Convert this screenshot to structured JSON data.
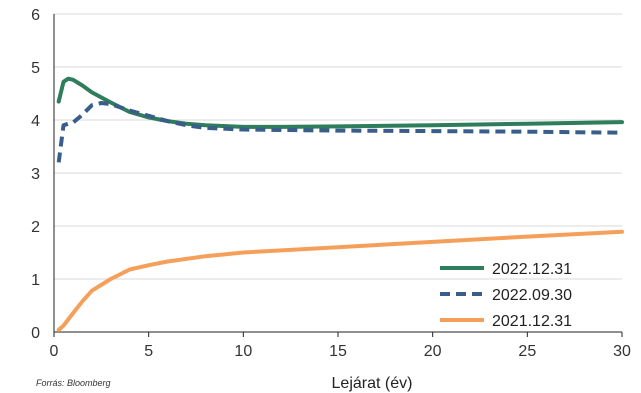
{
  "chart_data": {
    "type": "line",
    "title": "",
    "xlabel": "Lejárat (év)",
    "ylabel": "",
    "xlim": [
      0,
      30
    ],
    "ylim": [
      0,
      6
    ],
    "x_ticks": [
      0,
      5,
      10,
      15,
      20,
      25,
      30
    ],
    "y_ticks": [
      0,
      1,
      2,
      3,
      4,
      5,
      6
    ],
    "grid": "horizontal",
    "legend_position": "bottom-right",
    "source": "Forrás: Bloomberg",
    "series": [
      {
        "name": "2022.12.31",
        "color": "#2e7d5b",
        "dash": "solid",
        "x": [
          0.25,
          0.5,
          0.75,
          1,
          1.5,
          2,
          3,
          4,
          5,
          6,
          7,
          8,
          10,
          12,
          15,
          20,
          25,
          30
        ],
        "y": [
          4.35,
          4.72,
          4.78,
          4.76,
          4.65,
          4.52,
          4.33,
          4.15,
          4.05,
          3.98,
          3.93,
          3.9,
          3.87,
          3.87,
          3.88,
          3.9,
          3.93,
          3.96
        ]
      },
      {
        "name": "2022.09.30",
        "color": "#3a5e8c",
        "dash": "dashed",
        "x": [
          0.25,
          0.5,
          0.75,
          1,
          1.5,
          2,
          2.5,
          3,
          4,
          5,
          6,
          7,
          8,
          10,
          15,
          20,
          25,
          30
        ],
        "y": [
          3.2,
          3.9,
          3.93,
          3.95,
          4.1,
          4.28,
          4.32,
          4.3,
          4.18,
          4.08,
          3.98,
          3.9,
          3.85,
          3.82,
          3.8,
          3.79,
          3.78,
          3.76
        ]
      },
      {
        "name": "2021.12.31",
        "color": "#f5a05a",
        "dash": "solid",
        "x": [
          0.25,
          0.5,
          1,
          1.5,
          2,
          3,
          4,
          5,
          6,
          8,
          10,
          15,
          20,
          25,
          30
        ],
        "y": [
          0.04,
          0.12,
          0.35,
          0.58,
          0.78,
          1.0,
          1.18,
          1.26,
          1.33,
          1.43,
          1.5,
          1.6,
          1.7,
          1.8,
          1.89
        ]
      }
    ]
  }
}
